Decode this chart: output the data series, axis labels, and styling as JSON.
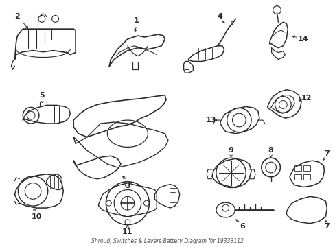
{
  "title": "Shroud, Switches & Levers Battery Diagram for 19333112",
  "background_color": "#ffffff",
  "line_color": "#2a2a2a",
  "fig_width": 4.89,
  "fig_height": 3.6,
  "dpi": 100,
  "bottom_text": "Shroud, Switches & Levers Battery Diagram for 19333112"
}
